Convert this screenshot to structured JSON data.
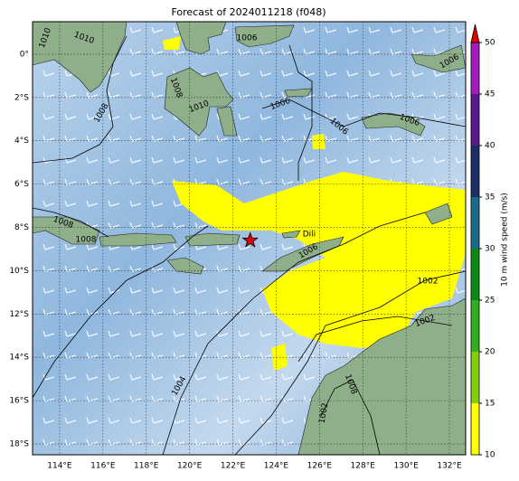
{
  "chart_data": {
    "type": "map",
    "title": "Forecast of 2024011218 (f048)",
    "xlim": [
      112.75,
      132.75
    ],
    "ylim": [
      -18.5,
      1.5
    ],
    "xticks": [
      {
        "value": 114,
        "label": "114°E"
      },
      {
        "value": 116,
        "label": "116°E"
      },
      {
        "value": 118,
        "label": "118°E"
      },
      {
        "value": 120,
        "label": "120°E"
      },
      {
        "value": 122,
        "label": "122°E"
      },
      {
        "value": 124,
        "label": "124°E"
      },
      {
        "value": 126,
        "label": "126°E"
      },
      {
        "value": 128,
        "label": "128°E"
      },
      {
        "value": 130,
        "label": "130°E"
      },
      {
        "value": 132,
        "label": "132°E"
      }
    ],
    "yticks": [
      {
        "value": 0,
        "label": "0°"
      },
      {
        "value": -2,
        "label": "2°S"
      },
      {
        "value": -4,
        "label": "4°S"
      },
      {
        "value": -6,
        "label": "6°S"
      },
      {
        "value": -8,
        "label": "8°S"
      },
      {
        "value": -10,
        "label": "10°S"
      },
      {
        "value": -12,
        "label": "12°S"
      },
      {
        "value": -14,
        "label": "14°S"
      },
      {
        "value": -16,
        "label": "16°S"
      },
      {
        "value": -18,
        "label": "18°S"
      }
    ],
    "grid": true,
    "colorbar": {
      "label": "10 m wind speed (m/s)",
      "lim": [
        10,
        50
      ],
      "ticks": [
        10,
        15,
        20,
        25,
        30,
        35,
        40,
        45,
        50
      ],
      "colors": [
        "#ffff00",
        "#80d010",
        "#30b020",
        "#0a8a10",
        "#1a6a8a",
        "#1a2f66",
        "#5a1a8e",
        "#a41cc0"
      ],
      "extend_color": "#e00000"
    },
    "marker": {
      "lon": 122.8,
      "lat": -8.6,
      "color": "#e00000",
      "label": "Dili"
    },
    "contour_labels": [
      "1010",
      "1010",
      "1006",
      "1006",
      "1008",
      "1010",
      "1008",
      "1006",
      "1006",
      "1006",
      "1008",
      "1008",
      "1006",
      "1002",
      "1002",
      "1004",
      "1008",
      "1002"
    ]
  }
}
